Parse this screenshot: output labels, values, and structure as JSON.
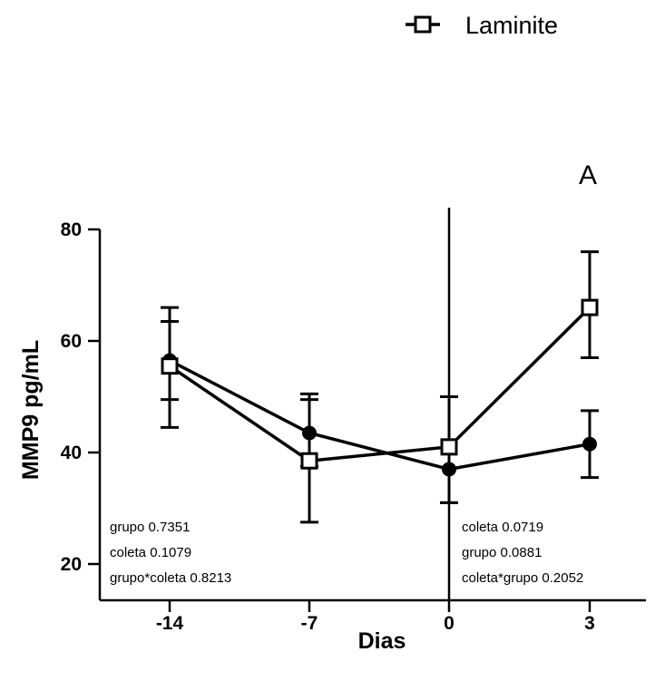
{
  "chart_data": {
    "type": "line",
    "panel_letter": "A",
    "xlabel": "Dias",
    "ylabel": "MMP9 pg/mL",
    "x": [
      -14,
      -7,
      0,
      3
    ],
    "x_tick_labels": [
      "-14",
      "-7",
      "0",
      "3"
    ],
    "y_ticks": [
      20,
      40,
      60,
      80
    ],
    "y_tick_labels": [
      "20",
      "40",
      "60",
      "80"
    ],
    "ylim": [
      10,
      80
    ],
    "reference_line_x": 0,
    "series": [
      {
        "marker": "filled-circle",
        "values": [
          56.5,
          43.5,
          37,
          41.5
        ],
        "err_upper": [
          63.5,
          49.5,
          50,
          47.5
        ],
        "err_lower": [
          49.5,
          37.5,
          31,
          35.5
        ]
      },
      {
        "name": "Laminite",
        "marker": "open-square",
        "values": [
          55.5,
          38.5,
          41,
          66
        ],
        "err_upper": [
          66,
          50.5,
          50,
          76
        ],
        "err_lower": [
          44.5,
          27.5,
          31,
          57
        ]
      }
    ],
    "legend": {
      "position": "top-right",
      "entries": [
        "Laminite"
      ]
    },
    "annotations": {
      "left_stats": [
        "grupo  0.7351",
        "coleta 0.1079",
        "grupo*coleta 0.8213"
      ],
      "right_stats": [
        "coleta  0.0719",
        "grupo 0.0881",
        "coleta*grupo 0.2052"
      ]
    }
  }
}
